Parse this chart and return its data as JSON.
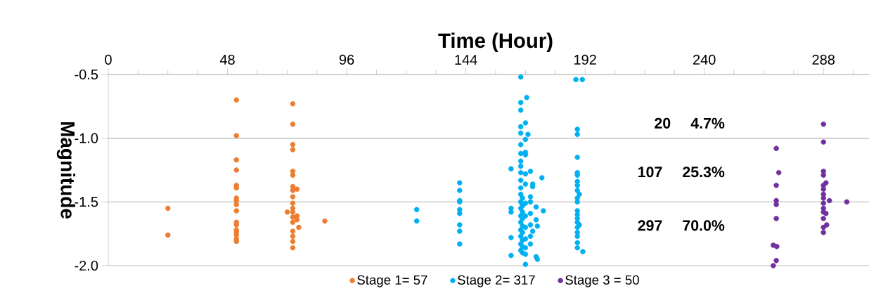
{
  "chart_data": {
    "type": "scatter",
    "xlabel": "Time (Hour)",
    "ylabel": "Magnitude",
    "xlim": [
      0,
      312
    ],
    "ylim": [
      -2.0,
      -0.5
    ],
    "xticks": [
      0,
      {
        "value": 12,
        "label": null
      },
      {
        "value": 24,
        "label": null
      },
      {
        "value": 36,
        "label": null
      },
      48,
      {
        "value": 60,
        "label": null
      },
      {
        "value": 72,
        "label": null
      },
      {
        "value": 84,
        "label": null
      },
      96,
      {
        "value": 108,
        "label": null
      },
      {
        "value": 120,
        "label": null
      },
      {
        "value": 132,
        "label": null
      },
      144,
      {
        "value": 156,
        "label": null
      },
      {
        "value": 168,
        "label": null
      },
      {
        "value": 180,
        "label": null
      },
      192,
      {
        "value": 204,
        "label": null
      },
      {
        "value": 216,
        "label": null
      },
      {
        "value": 228,
        "label": null
      },
      240,
      {
        "value": 252,
        "label": null
      },
      {
        "value": 264,
        "label": null
      },
      {
        "value": 276,
        "label": null
      },
      288,
      {
        "value": 300,
        "label": null
      }
    ],
    "yticks": [
      {
        "value": -0.5,
        "label": "-0.5"
      },
      {
        "value": -1.0,
        "label": "-1.0"
      },
      {
        "value": -1.5,
        "label": "-1.5"
      },
      {
        "value": -2.0,
        "label": "-2.0"
      }
    ],
    "grid": "y",
    "legend": "bottom",
    "marker": "circle",
    "annotations": [
      "20",
      "4.7%",
      "107",
      "25.3%",
      "297",
      "70.0%"
    ],
    "series": [
      {
        "name": "Stage 1= 57",
        "color": "#ed7d31",
        "x": [
          24,
          24,
          51.6,
          51.6,
          51.6,
          51.6,
          51.6,
          51.6,
          51.6,
          51.6,
          51.6,
          51.6,
          51.6,
          51.6,
          51.6,
          51.6,
          51.6,
          51.6,
          51.6,
          74.3,
          74.3,
          74.3,
          74.3,
          74.3,
          74.3,
          74.3,
          74.3,
          74.3,
          74.3,
          74.3,
          74.3,
          74.3,
          74.3,
          74.3,
          74.3,
          74.3,
          74.3,
          72.1,
          76,
          76,
          76,
          76.7,
          87.2
        ],
        "values": [
          -1.55,
          -1.76,
          -0.7,
          -0.98,
          -1.17,
          -1.25,
          -1.37,
          -1.39,
          -1.47,
          -1.49,
          -1.52,
          -1.57,
          -1.66,
          -1.68,
          -1.72,
          -1.74,
          -1.76,
          -1.79,
          -1.81,
          -0.73,
          -0.89,
          -1.05,
          -1.09,
          -1.26,
          -1.29,
          -1.38,
          -1.41,
          -1.46,
          -1.51,
          -1.55,
          -1.58,
          -1.62,
          -1.66,
          -1.73,
          -1.77,
          -1.81,
          -1.86,
          -1.58,
          -1.4,
          -1.61,
          -1.64,
          -1.7,
          -1.65
        ]
      },
      {
        "name": "Stage 2= 317",
        "color": "#00b0f0",
        "x": [
          124.2,
          124.2,
          141.5,
          141.5,
          141.5,
          141.5,
          141.5,
          141.5,
          141.5,
          141.5,
          141.5,
          162.2,
          162.2,
          162.2,
          162.2,
          162.2,
          166.1,
          166.1,
          166.1,
          166.1,
          166.1,
          166.1,
          166.1,
          166.1,
          166.1,
          166.1,
          166.1,
          166.1,
          166.1,
          166.1,
          166.1,
          166.1,
          166.1,
          166.1,
          166.1,
          166.1,
          166.1,
          166.8,
          166.8,
          166.8,
          166.8,
          166.8,
          166.8,
          166.8,
          166.8,
          166.8,
          168.0,
          168.0,
          168.0,
          168.0,
          168.0,
          168.0,
          168.0,
          168.0,
          168.0,
          168.0,
          168.0,
          168.0,
          168.0,
          168.5,
          169.0,
          170.0,
          170.0,
          170.0,
          170.0,
          170.0,
          170.0,
          170.0,
          170.9,
          170.9,
          170.9,
          172.3,
          172.3,
          172.3,
          172.8,
          172.8,
          174.6,
          175.2,
          188.3,
          190.9,
          188.9,
          188.9,
          188.9,
          188.9,
          188.9,
          188.9,
          188.9,
          188.9,
          188.9,
          188.9,
          188.9,
          188.9,
          188.9,
          188.9,
          188.9,
          188.9,
          188.9,
          188.9,
          188.9,
          189.7,
          189.7,
          191.1
        ],
        "values": [
          -1.56,
          -1.65,
          -1.35,
          -1.41,
          -1.49,
          -1.5,
          -1.56,
          -1.59,
          -1.68,
          -1.73,
          -1.83,
          -1.24,
          -1.55,
          -1.58,
          -1.78,
          -1.92,
          -0.52,
          -0.72,
          -0.78,
          -0.91,
          -0.96,
          -1.05,
          -1.12,
          -1.18,
          -1.22,
          -1.27,
          -1.33,
          -1.39,
          -1.44,
          -1.5,
          -1.55,
          -1.61,
          -1.66,
          -1.72,
          -1.77,
          -1.83,
          -1.88,
          -1.47,
          -1.53,
          -1.58,
          -1.63,
          -1.69,
          -1.74,
          -1.8,
          -1.85,
          -1.9,
          -0.88,
          -1.01,
          -1.11,
          -1.13,
          -1.28,
          -1.36,
          -1.51,
          -1.61,
          -1.7,
          -1.79,
          -1.86,
          -1.91,
          -1.99,
          -0.68,
          -0.97,
          -1.26,
          -1.46,
          -1.5,
          -1.59,
          -1.68,
          -1.77,
          -1.83,
          -1.36,
          -1.38,
          -1.73,
          -1.54,
          -1.64,
          -1.93,
          -1.69,
          -1.95,
          -1.31,
          -1.57,
          -0.54,
          -0.54,
          -0.93,
          -0.97,
          -1.15,
          -1.27,
          -1.29,
          -1.34,
          -1.37,
          -1.41,
          -1.47,
          -1.5,
          -1.57,
          -1.6,
          -1.63,
          -1.66,
          -1.7,
          -1.74,
          -1.77,
          -1.82,
          -1.86,
          -1.44,
          -1.68,
          -1.89
        ]
      },
      {
        "name": "Stage 3 = 50",
        "color": "#7030a0",
        "x": [
          269.0,
          270.0,
          269.0,
          269.0,
          269.0,
          269.0,
          267.8,
          269.2,
          269.0,
          267.8,
          288.0,
          288.0,
          288.0,
          288.0,
          289.0,
          288.0,
          288.0,
          288.0,
          288.0,
          288.0,
          288.0,
          288.0,
          289.0,
          288.0,
          289.3,
          288.0,
          288.0,
          290.4,
          297.4
        ],
        "values": [
          -1.08,
          -1.27,
          -1.37,
          -1.49,
          -1.52,
          -1.63,
          -1.84,
          -1.85,
          -1.96,
          -2.0,
          -0.89,
          -1.03,
          -1.26,
          -1.29,
          -1.35,
          -1.37,
          -1.4,
          -1.44,
          -1.47,
          -1.51,
          -1.55,
          -1.58,
          -1.59,
          -1.63,
          -1.68,
          -1.7,
          -1.74,
          -1.49,
          -1.5
        ]
      }
    ]
  }
}
